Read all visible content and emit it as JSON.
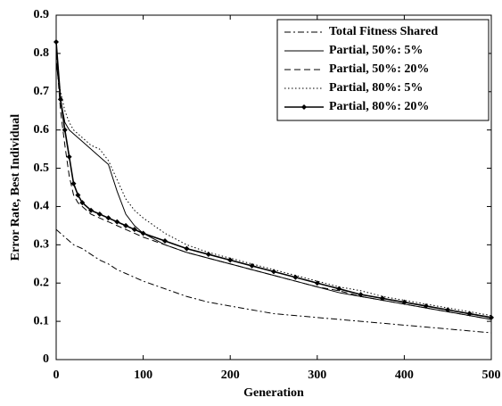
{
  "chart_data": {
    "type": "line",
    "xlabel": "Generation",
    "ylabel": "Error Rate, Best Individual",
    "x": [
      0,
      5,
      10,
      15,
      20,
      25,
      30,
      40,
      50,
      60,
      70,
      80,
      90,
      100,
      125,
      150,
      175,
      200,
      225,
      250,
      275,
      300,
      325,
      350,
      375,
      400,
      425,
      450,
      475,
      500
    ],
    "series": [
      {
        "name": "Total Fitness Shared",
        "color": "#000000",
        "style": "dashdot",
        "values": [
          0.34,
          0.33,
          0.32,
          0.31,
          0.3,
          0.295,
          0.29,
          0.275,
          0.26,
          0.25,
          0.235,
          0.225,
          0.215,
          0.205,
          0.185,
          0.165,
          0.15,
          0.14,
          0.13,
          0.12,
          0.115,
          0.11,
          0.105,
          0.1,
          0.095,
          0.09,
          0.085,
          0.08,
          0.075,
          0.07
        ]
      },
      {
        "name": "Partial, 50%: 5%",
        "color": "#000000",
        "style": "solid",
        "values": [
          0.78,
          0.68,
          0.62,
          0.6,
          0.59,
          0.58,
          0.57,
          0.55,
          0.53,
          0.51,
          0.44,
          0.38,
          0.35,
          0.33,
          0.3,
          0.28,
          0.265,
          0.25,
          0.235,
          0.22,
          0.205,
          0.19,
          0.175,
          0.165,
          0.155,
          0.145,
          0.135,
          0.125,
          0.115,
          0.105
        ]
      },
      {
        "name": "Partial, 50%: 20%",
        "color": "#000000",
        "style": "dashed",
        "values": [
          0.8,
          0.65,
          0.56,
          0.48,
          0.43,
          0.41,
          0.4,
          0.38,
          0.37,
          0.36,
          0.35,
          0.34,
          0.33,
          0.32,
          0.3,
          0.28,
          0.265,
          0.25,
          0.235,
          0.22,
          0.205,
          0.19,
          0.18,
          0.165,
          0.155,
          0.145,
          0.135,
          0.125,
          0.115,
          0.105
        ]
      },
      {
        "name": "Partial, 80%: 5%",
        "color": "#000000",
        "style": "dotted",
        "values": [
          0.78,
          0.7,
          0.65,
          0.62,
          0.6,
          0.59,
          0.58,
          0.56,
          0.55,
          0.52,
          0.47,
          0.42,
          0.39,
          0.37,
          0.33,
          0.3,
          0.28,
          0.265,
          0.25,
          0.235,
          0.22,
          0.205,
          0.19,
          0.18,
          0.165,
          0.155,
          0.145,
          0.135,
          0.125,
          0.115
        ]
      },
      {
        "name": "Partial, 80%: 20%",
        "color": "#000000",
        "style": "solid",
        "marker": "diamond",
        "values": [
          0.83,
          0.68,
          0.6,
          0.53,
          0.46,
          0.43,
          0.41,
          0.39,
          0.38,
          0.37,
          0.36,
          0.35,
          0.34,
          0.33,
          0.31,
          0.29,
          0.275,
          0.26,
          0.245,
          0.23,
          0.215,
          0.2,
          0.185,
          0.17,
          0.16,
          0.15,
          0.14,
          0.13,
          0.12,
          0.11
        ]
      }
    ],
    "xlim": [
      0,
      500
    ],
    "xticks": [
      0,
      100,
      200,
      300,
      400,
      500
    ],
    "ylim": [
      0,
      0.9
    ],
    "yticks": [
      0,
      0.1,
      0.2,
      0.3,
      0.4,
      0.5,
      0.6,
      0.7,
      0.8,
      0.9
    ],
    "legend": "upper right"
  }
}
